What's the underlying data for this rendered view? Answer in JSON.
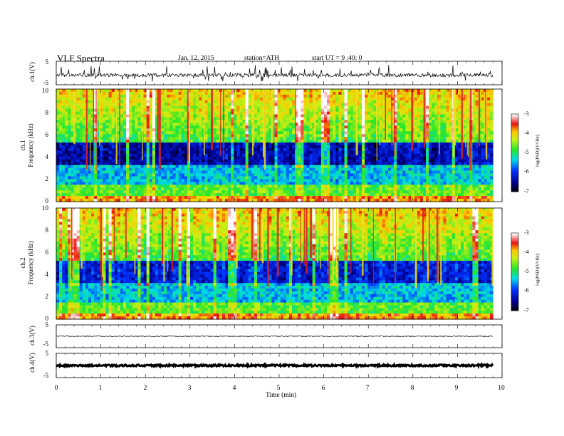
{
  "header": {
    "title": "VLF  Spectra",
    "date": "Jan. 12, 2015",
    "station": "station=ATH",
    "start": "start  UT  =   9 :40: 0"
  },
  "chart_data": [
    {
      "type": "line",
      "name": "ch1-waveform",
      "ylabel": "ch.1(V)",
      "yticks": [
        "5",
        "-5"
      ],
      "ylim": [
        -5,
        5
      ],
      "xlim": [
        0,
        10
      ]
    },
    {
      "type": "heatmap",
      "name": "ch1-spectrogram",
      "ylabel_line1": "ch.1",
      "ylabel_line2": "Frequency  (kHz)",
      "ylim": [
        0,
        10
      ],
      "yticks": [
        "0",
        "2",
        "4",
        "6",
        "8",
        "10"
      ],
      "xlim": [
        0,
        10
      ],
      "colorbar": {
        "label": "log(PSD)(V²/Hz)",
        "ticks": [
          "-3",
          "-4",
          "-5",
          "-6",
          "-7"
        ],
        "range": [
          -7,
          -3
        ]
      }
    },
    {
      "type": "heatmap",
      "name": "ch2-spectrogram",
      "ylabel_line1": "ch.2",
      "ylabel_line2": "Frequency  (kHz)",
      "ylim": [
        0,
        10
      ],
      "yticks": [
        "0",
        "2",
        "4",
        "6",
        "8",
        "10"
      ],
      "xlim": [
        0,
        10
      ],
      "colorbar": {
        "label": "log(PSD)(V²/Hz)",
        "ticks": [
          "-3",
          "-4",
          "-5",
          "-6",
          "-7"
        ],
        "range": [
          -7,
          -3
        ]
      }
    },
    {
      "type": "line",
      "name": "ch3-waveform",
      "ylabel": "ch.3(V)",
      "yticks": [
        "5",
        "-5"
      ],
      "ylim": [
        -5,
        5
      ],
      "xlim": [
        0,
        10
      ]
    },
    {
      "type": "line",
      "name": "ch4-waveform",
      "ylabel": "ch.4(V)",
      "yticks": [
        "5",
        "-5"
      ],
      "ylim": [
        -5,
        5
      ],
      "xlim": [
        0,
        10
      ]
    }
  ],
  "xaxis": {
    "label": "Time  (min)",
    "ticks": [
      "0",
      "1",
      "2",
      "3",
      "4",
      "5",
      "6",
      "7",
      "8",
      "9",
      "10"
    ],
    "range": [
      0,
      10
    ]
  }
}
